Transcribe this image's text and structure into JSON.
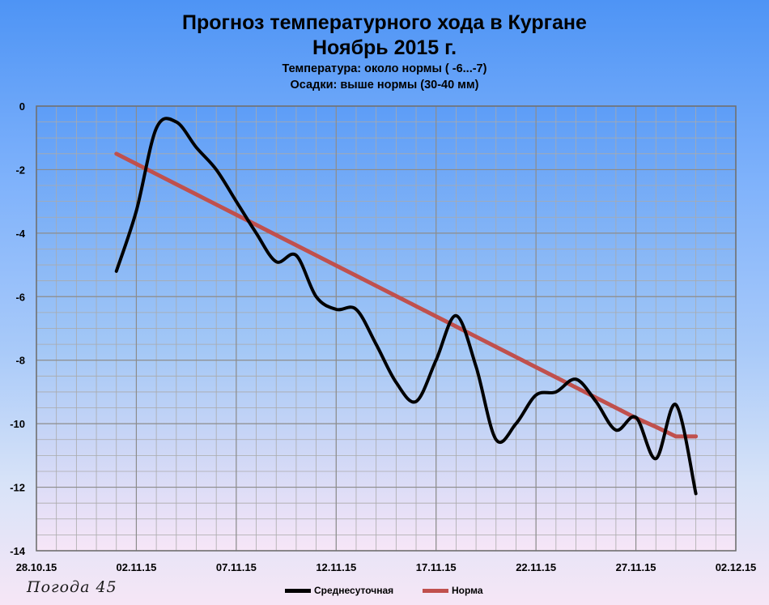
{
  "titles": {
    "line1": "Прогноз температурного хода в Кургане",
    "line2": "Ноябрь 2015 г.",
    "sub1": "Температура: около нормы ( -6...-7)",
    "sub2": "Осадки: выше нормы (30-40 мм)"
  },
  "watermark": "Погода 45",
  "chart_data": {
    "type": "line",
    "ylim": [
      -14,
      0
    ],
    "yticks": [
      0,
      -2,
      -4,
      -6,
      -8,
      -10,
      -12,
      -14
    ],
    "ytick_labels": [
      "0",
      "-2",
      "-4",
      "-6",
      "-8",
      "-10",
      "-12",
      "-14"
    ],
    "xlim": [
      "28.10.15",
      "02.12.15"
    ],
    "xtick_labels": [
      "28.10.15",
      "02.12.15",
      "02.11.15",
      "07.11.15",
      "12.11.15",
      "17.11.15",
      "22.11.15",
      "27.11.15"
    ],
    "xticks": [
      "28.10.15",
      "02.11.15",
      "07.11.15",
      "12.11.15",
      "17.11.15",
      "22.11.15",
      "27.11.15",
      "02.12.15"
    ],
    "x": [
      "01.11.15",
      "02.11.15",
      "03.11.15",
      "04.11.15",
      "05.11.15",
      "06.11.15",
      "07.11.15",
      "08.11.15",
      "09.11.15",
      "10.11.15",
      "11.11.15",
      "12.11.15",
      "13.11.15",
      "14.11.15",
      "15.11.15",
      "16.11.15",
      "17.11.15",
      "18.11.15",
      "19.11.15",
      "20.11.15",
      "21.11.15",
      "22.11.15",
      "23.11.15",
      "24.11.15",
      "25.11.15",
      "26.11.15",
      "27.11.15",
      "28.11.15",
      "29.11.15",
      "30.11.15"
    ],
    "series": [
      {
        "name": "Среднесуточная",
        "color": "#000000",
        "values": [
          -5.2,
          -3.3,
          -0.7,
          -0.5,
          -1.3,
          -2.0,
          -3.0,
          -4.0,
          -4.9,
          -4.7,
          -6.0,
          -6.4,
          -6.4,
          -7.5,
          -8.7,
          -9.3,
          -8.0,
          -6.6,
          -8.2,
          -10.5,
          -10.0,
          -9.1,
          -9.0,
          -8.6,
          -9.3,
          -10.2,
          -9.8,
          -11.1,
          -9.4,
          -12.2
        ]
      },
      {
        "name": "Норма",
        "color": "#c0504d",
        "values": [
          -1.5,
          -1.82,
          -2.14,
          -2.46,
          -2.78,
          -3.1,
          -3.42,
          -3.74,
          -4.06,
          -4.38,
          -4.7,
          -5.02,
          -5.34,
          -5.66,
          -5.98,
          -6.3,
          -6.62,
          -6.94,
          -7.26,
          -7.58,
          -7.9,
          -8.22,
          -8.54,
          -8.86,
          -9.18,
          -9.5,
          -9.82,
          -10.1,
          -10.4,
          -10.4
        ]
      }
    ],
    "grid": true,
    "legend": "bottom"
  },
  "colors": {
    "plot_bg_top": "#5d9df7",
    "plot_bg_bottom": "#f7e6f7",
    "grid": "#aaaaaa"
  }
}
